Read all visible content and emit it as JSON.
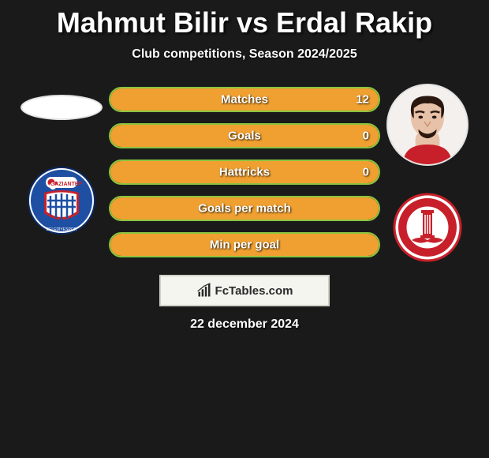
{
  "title": {
    "player1": "Mahmut Bilir",
    "vs": "vs",
    "player2": "Erdal Rakip",
    "player1_color": "#e8e8e8",
    "player2_color": "#e8e8e8"
  },
  "subtitle": "Club competitions, Season 2024/2025",
  "date": "22 december 2024",
  "footer_brand": "FcTables.com",
  "colors": {
    "player1_accent": "#8ac440",
    "player2_accent": "#f0a030",
    "bar_border": "#8ac440",
    "background": "#1a1a1a"
  },
  "player1": {
    "name": "Mahmut Bilir",
    "club_name": "Gaziantep",
    "club_colors": {
      "primary": "#1e4fa3",
      "secondary": "#c8202a",
      "tertiary": "#ffffff"
    }
  },
  "player2": {
    "name": "Erdal Rakip",
    "club_name": "Antalyaspor",
    "club_colors": {
      "primary": "#c8202a",
      "secondary": "#ffffff"
    }
  },
  "stats": [
    {
      "label": "Matches",
      "p1": null,
      "p2": 12,
      "p1_pct": 0,
      "p2_pct": 100
    },
    {
      "label": "Goals",
      "p1": null,
      "p2": 0,
      "p1_pct": 0,
      "p2_pct": 100
    },
    {
      "label": "Hattricks",
      "p1": null,
      "p2": 0,
      "p1_pct": 0,
      "p2_pct": 100
    },
    {
      "label": "Goals per match",
      "p1": null,
      "p2": null,
      "p1_pct": 0,
      "p2_pct": 100
    },
    {
      "label": "Min per goal",
      "p1": null,
      "p2": null,
      "p1_pct": 0,
      "p2_pct": 100
    }
  ]
}
